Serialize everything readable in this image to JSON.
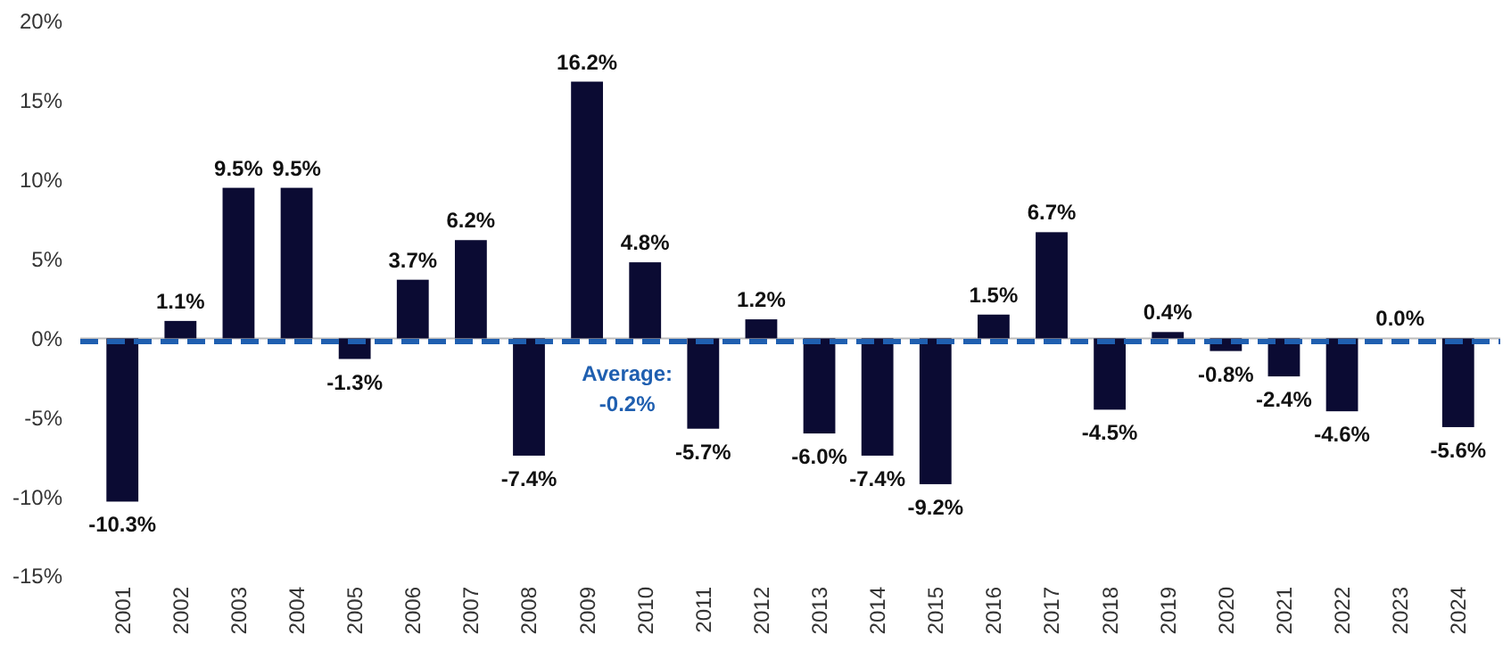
{
  "chart_data": {
    "type": "bar",
    "categories": [
      "2001",
      "2002",
      "2003",
      "2004",
      "2005",
      "2006",
      "2007",
      "2008",
      "2009",
      "2010",
      "2011",
      "2012",
      "2013",
      "2014",
      "2015",
      "2016",
      "2017",
      "2018",
      "2019",
      "2020",
      "2021",
      "2022",
      "2023",
      "2024"
    ],
    "values": [
      -10.3,
      1.1,
      9.5,
      9.5,
      -1.3,
      3.7,
      6.2,
      -7.4,
      16.2,
      4.8,
      -5.7,
      1.2,
      -6.0,
      -7.4,
      -9.2,
      1.5,
      6.7,
      -4.5,
      0.4,
      -0.8,
      -2.4,
      -4.6,
      0.0,
      -5.6
    ],
    "value_labels": [
      "-10.3%",
      "1.1%",
      "9.5%",
      "9.5%",
      "-1.3%",
      "3.7%",
      "6.2%",
      "-7.4%",
      "16.2%",
      "4.8%",
      "-5.7%",
      "1.2%",
      "-6.0%",
      "-7.4%",
      "-9.2%",
      "1.5%",
      "6.7%",
      "-4.5%",
      "0.4%",
      "-0.8%",
      "-2.4%",
      "-4.6%",
      "0.0%",
      "-5.6%"
    ],
    "color": "#0b0b33",
    "ylim": [
      -15,
      20
    ],
    "yticks": [
      {
        "value": -15,
        "label": "-15%"
      },
      {
        "value": -10,
        "label": "-10%"
      },
      {
        "value": -5,
        "label": "-5%"
      },
      {
        "value": 0,
        "label": "0%"
      },
      {
        "value": 5,
        "label": "5%"
      },
      {
        "value": 10,
        "label": "10%"
      },
      {
        "value": 15,
        "label": "15%"
      },
      {
        "value": 20,
        "label": "20%"
      }
    ],
    "ref_lines": [
      {
        "axis": "y",
        "value": -0.2,
        "label": "Average: -0.2%",
        "color": "#1f5fb0",
        "line_style": "dashed"
      }
    ],
    "grid": false
  }
}
